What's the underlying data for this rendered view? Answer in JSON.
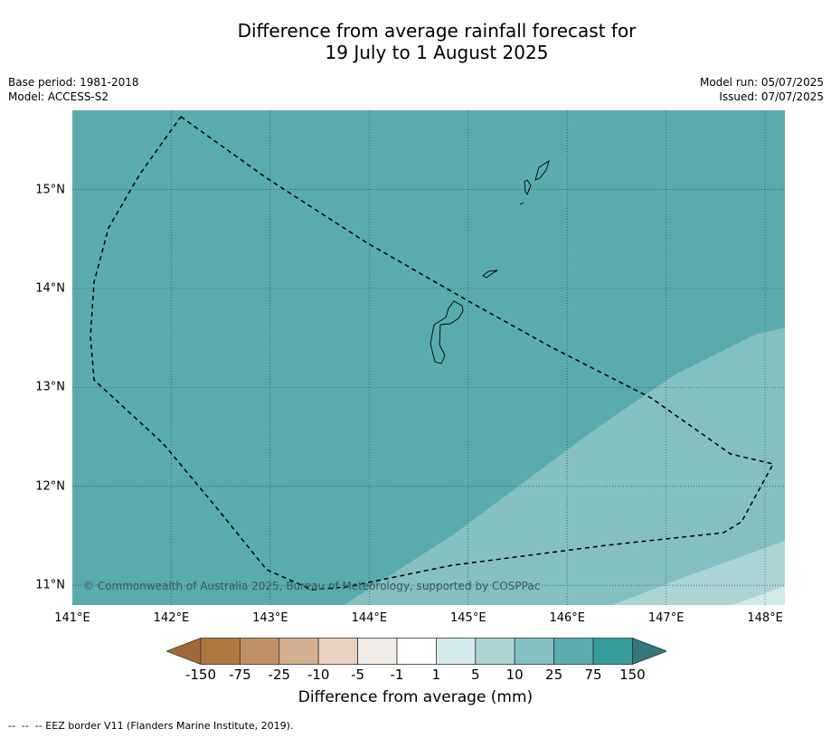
{
  "title": {
    "line1": "Difference from average rainfall forecast for",
    "line2": "19 July to 1 August 2025"
  },
  "meta": {
    "base_period": "Base period: 1981-2018",
    "model": "Model: ACCESS-S2",
    "model_run": "Model run: 05/07/2025",
    "issued": "Issued: 07/07/2025"
  },
  "map": {
    "lon_min": 141.0,
    "lon_max": 148.2,
    "lat_min": 10.8,
    "lat_max": 15.8,
    "lat_labels": [
      {
        "value": 15,
        "text": "15°N"
      },
      {
        "value": 14,
        "text": "14°N"
      },
      {
        "value": 13,
        "text": "13°N"
      },
      {
        "value": 12,
        "text": "12°N"
      },
      {
        "value": 11,
        "text": "11°N"
      }
    ],
    "lon_labels": [
      {
        "value": 141,
        "text": "141°E"
      },
      {
        "value": 142,
        "text": "142°E"
      },
      {
        "value": 143,
        "text": "143°E"
      },
      {
        "value": 144,
        "text": "144°E"
      },
      {
        "value": 145,
        "text": "145°E"
      },
      {
        "value": 146,
        "text": "146°E"
      },
      {
        "value": 147,
        "text": "147°E"
      },
      {
        "value": 148,
        "text": "148°E"
      }
    ],
    "copyright": "© Commonwealth of Australia 2025, Bureau of Meteorology, supported by COSPPac"
  },
  "colors": {
    "band_25_75": "#5aabac",
    "band_10_25": "#84c0c0",
    "band_5_10": "#abd5d5",
    "band_1_5": "#d4e9e9",
    "land_outline": "#000000"
  },
  "colorbar": {
    "colors": [
      "#a06a38",
      "#b07840",
      "#c19067",
      "#d5b090",
      "#e8d2c0",
      "#f0ebe7",
      "#ffffff",
      "#d4e9e9",
      "#abd5d5",
      "#84c0c0",
      "#5aabac",
      "#379c9c",
      "#327878"
    ],
    "labels": [
      "-150",
      "-75",
      "-25",
      "-10",
      "-5",
      "-1",
      "1",
      "5",
      "10",
      "25",
      "75",
      "150"
    ],
    "title": "Difference from average (mm)"
  },
  "footnote": "--  --  -- EEZ border V11 (Flanders Marine Institute, 2019)."
}
